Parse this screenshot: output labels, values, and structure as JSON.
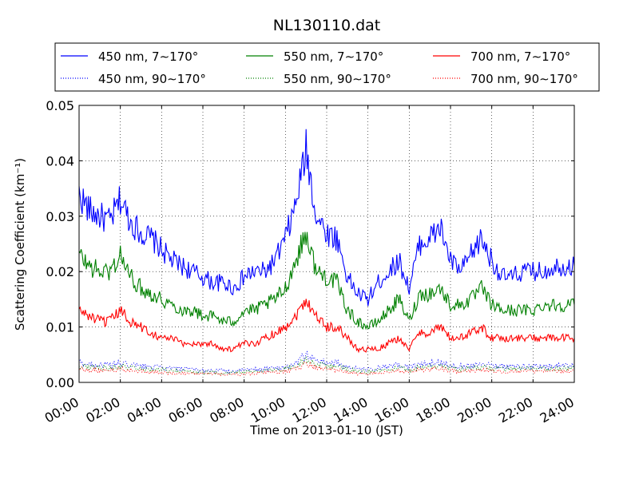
{
  "chart_data": {
    "type": "line",
    "title": "NL130110.dat",
    "xlabel": "Time on 2013-01-10 (JST)",
    "ylabel": "Scattering Coefficient (km⁻¹)",
    "x_unit": "hours",
    "xlim": [
      0,
      24
    ],
    "ylim": [
      0,
      0.05
    ],
    "x_ticks": [
      0,
      2,
      4,
      6,
      8,
      10,
      12,
      14,
      16,
      18,
      20,
      22,
      24
    ],
    "x_tick_labels": [
      "00:00",
      "02:00",
      "04:00",
      "06:00",
      "08:00",
      "10:00",
      "12:00",
      "14:00",
      "16:00",
      "18:00",
      "20:00",
      "22:00",
      "24:00"
    ],
    "y_ticks": [
      0,
      0.01,
      0.02,
      0.03,
      0.04,
      0.05
    ],
    "y_tick_labels": [
      "0.00",
      "0.01",
      "0.02",
      "0.03",
      "0.04",
      "0.05"
    ],
    "grid": true,
    "legend_position": "top (above plot, 3 columns)",
    "x": [
      0,
      0.5,
      1,
      1.5,
      2,
      2.5,
      3,
      3.5,
      4,
      4.5,
      5,
      5.5,
      6,
      6.5,
      7,
      7.5,
      8,
      8.5,
      9,
      9.5,
      10,
      10.5,
      11,
      11.5,
      12,
      12.5,
      13,
      13.5,
      14,
      14.5,
      15,
      15.5,
      16,
      16.5,
      17,
      17.5,
      18,
      18.5,
      19,
      19.5,
      20,
      20.5,
      21,
      21.5,
      22,
      22.5,
      23,
      23.5,
      24
    ],
    "series": [
      {
        "name": "450 nm, 7∼170°",
        "color": "#0000ff",
        "style": "solid",
        "values": [
          0.034,
          0.031,
          0.03,
          0.029,
          0.033,
          0.029,
          0.027,
          0.026,
          0.024,
          0.022,
          0.021,
          0.02,
          0.019,
          0.018,
          0.018,
          0.017,
          0.019,
          0.02,
          0.02,
          0.022,
          0.026,
          0.032,
          0.042,
          0.03,
          0.027,
          0.026,
          0.019,
          0.016,
          0.015,
          0.018,
          0.02,
          0.022,
          0.017,
          0.025,
          0.026,
          0.028,
          0.022,
          0.02,
          0.023,
          0.026,
          0.022,
          0.019,
          0.019,
          0.02,
          0.02,
          0.02,
          0.021,
          0.021,
          0.021
        ]
      },
      {
        "name": "550 nm, 7∼170°",
        "color": "#008000",
        "style": "solid",
        "values": [
          0.023,
          0.021,
          0.02,
          0.02,
          0.023,
          0.019,
          0.017,
          0.016,
          0.015,
          0.014,
          0.013,
          0.013,
          0.012,
          0.012,
          0.011,
          0.011,
          0.013,
          0.013,
          0.014,
          0.015,
          0.017,
          0.022,
          0.027,
          0.02,
          0.019,
          0.018,
          0.013,
          0.011,
          0.01,
          0.011,
          0.013,
          0.015,
          0.011,
          0.016,
          0.016,
          0.017,
          0.014,
          0.014,
          0.015,
          0.017,
          0.014,
          0.013,
          0.013,
          0.013,
          0.013,
          0.014,
          0.014,
          0.014,
          0.014
        ]
      },
      {
        "name": "700 nm, 7∼170°",
        "color": "#ff0000",
        "style": "solid",
        "values": [
          0.013,
          0.012,
          0.011,
          0.011,
          0.013,
          0.011,
          0.01,
          0.009,
          0.008,
          0.008,
          0.007,
          0.007,
          0.007,
          0.007,
          0.006,
          0.006,
          0.007,
          0.007,
          0.008,
          0.009,
          0.01,
          0.012,
          0.015,
          0.012,
          0.01,
          0.01,
          0.008,
          0.006,
          0.006,
          0.006,
          0.007,
          0.008,
          0.006,
          0.009,
          0.009,
          0.01,
          0.008,
          0.008,
          0.009,
          0.01,
          0.008,
          0.008,
          0.008,
          0.008,
          0.008,
          0.008,
          0.008,
          0.008,
          0.008
        ]
      },
      {
        "name": "450 nm, 90∼170°",
        "color": "#0000ff",
        "style": "dotted",
        "values": [
          0.0035,
          0.0033,
          0.0032,
          0.0031,
          0.0034,
          0.0031,
          0.0029,
          0.0028,
          0.0026,
          0.0025,
          0.0024,
          0.0023,
          0.0022,
          0.0021,
          0.0021,
          0.002,
          0.0022,
          0.0023,
          0.0024,
          0.0026,
          0.0028,
          0.0035,
          0.005,
          0.004,
          0.0036,
          0.0035,
          0.0028,
          0.0024,
          0.0023,
          0.0026,
          0.0028,
          0.0031,
          0.0027,
          0.0033,
          0.0034,
          0.0036,
          0.0031,
          0.0029,
          0.0031,
          0.0034,
          0.0032,
          0.0029,
          0.0029,
          0.0029,
          0.0029,
          0.0029,
          0.003,
          0.003,
          0.003
        ]
      },
      {
        "name": "550 nm, 90∼170°",
        "color": "#008000",
        "style": "dotted",
        "values": [
          0.003,
          0.0028,
          0.0027,
          0.0026,
          0.0029,
          0.0026,
          0.0024,
          0.0023,
          0.0022,
          0.0021,
          0.002,
          0.0019,
          0.0018,
          0.0018,
          0.0017,
          0.0017,
          0.0019,
          0.0019,
          0.002,
          0.0022,
          0.0024,
          0.003,
          0.0042,
          0.0033,
          0.003,
          0.0029,
          0.0023,
          0.002,
          0.0019,
          0.0021,
          0.0023,
          0.0026,
          0.0022,
          0.0028,
          0.0028,
          0.003,
          0.0026,
          0.0024,
          0.0026,
          0.0028,
          0.0026,
          0.0024,
          0.0024,
          0.0024,
          0.0024,
          0.0024,
          0.0025,
          0.0025,
          0.0025
        ]
      },
      {
        "name": "700 nm, 90∼170°",
        "color": "#ff0000",
        "style": "dotted",
        "values": [
          0.0025,
          0.0023,
          0.0022,
          0.0022,
          0.0024,
          0.0022,
          0.002,
          0.0019,
          0.0018,
          0.0017,
          0.0016,
          0.0016,
          0.0015,
          0.0015,
          0.0014,
          0.0014,
          0.0015,
          0.0016,
          0.0017,
          0.0018,
          0.002,
          0.0025,
          0.0034,
          0.0027,
          0.0024,
          0.0023,
          0.0019,
          0.0016,
          0.0015,
          0.0017,
          0.0019,
          0.0021,
          0.0018,
          0.0023,
          0.0023,
          0.0025,
          0.0021,
          0.002,
          0.0021,
          0.0023,
          0.0021,
          0.002,
          0.002,
          0.002,
          0.002,
          0.002,
          0.002,
          0.002,
          0.002
        ]
      }
    ]
  }
}
